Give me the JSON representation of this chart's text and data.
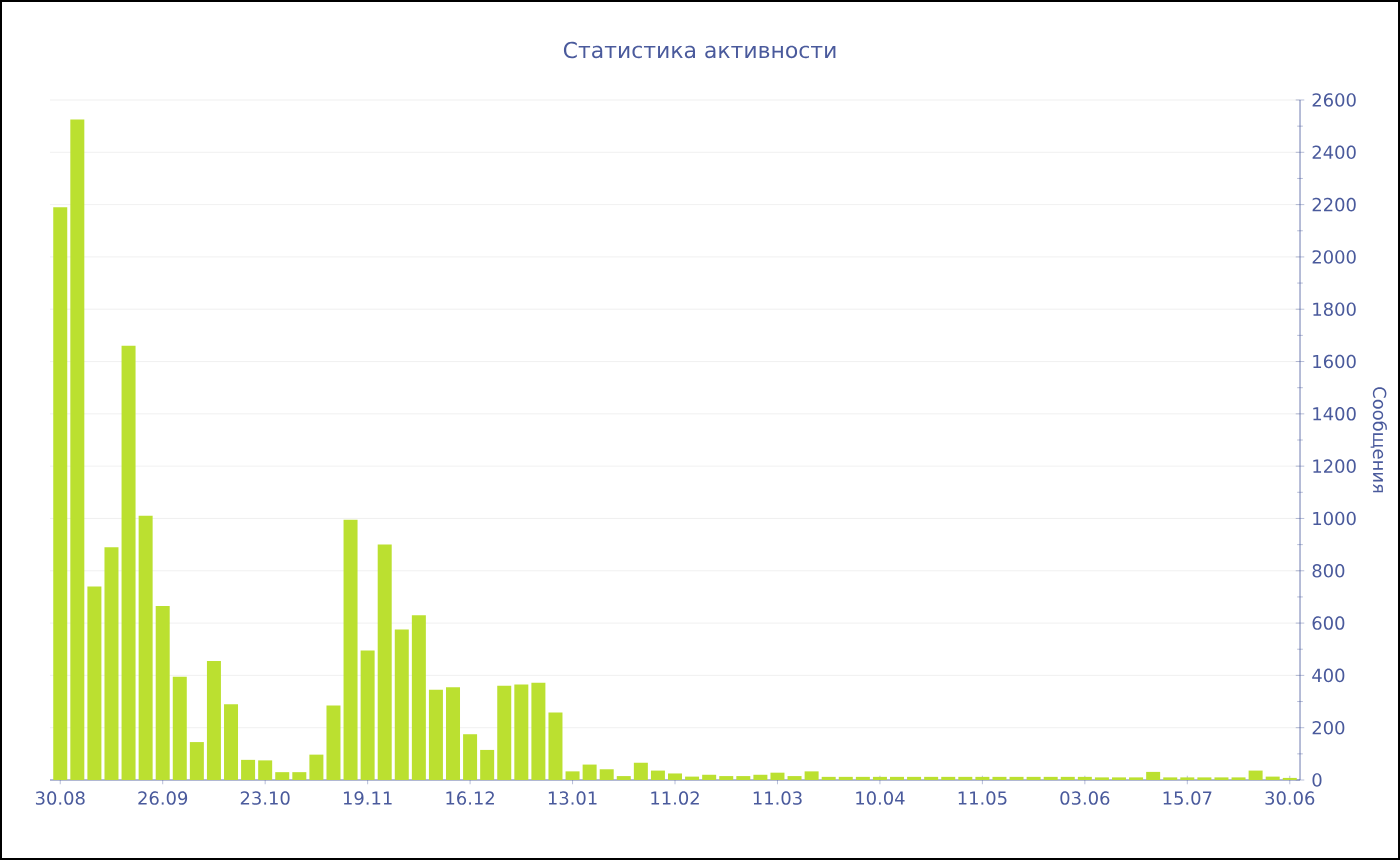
{
  "chart_data": {
    "type": "bar",
    "title": "Статистика активности",
    "ylabel": "Сообщения",
    "color": "#bbe030",
    "grid": "y",
    "categories": [
      "30.08",
      null,
      null,
      null,
      null,
      null,
      "26.09",
      null,
      null,
      null,
      null,
      null,
      "23.10",
      null,
      null,
      null,
      null,
      null,
      "19.11",
      null,
      null,
      null,
      null,
      null,
      "16.12",
      null,
      null,
      null,
      null,
      null,
      "13.01",
      null,
      null,
      null,
      null,
      null,
      "11.02",
      null,
      null,
      null,
      null,
      null,
      "11.03",
      null,
      null,
      null,
      null,
      null,
      "10.04",
      null,
      null,
      null,
      null,
      null,
      "11.05",
      null,
      null,
      null,
      null,
      null,
      "03.06",
      null,
      null,
      null,
      null,
      null,
      "15.07",
      null,
      null,
      null,
      null,
      null,
      "30.06"
    ],
    "values": [
      2190,
      2525,
      740,
      890,
      1660,
      1010,
      665,
      395,
      145,
      455,
      290,
      77,
      75,
      30,
      30,
      97,
      285,
      995,
      495,
      900,
      575,
      630,
      345,
      355,
      175,
      115,
      360,
      365,
      372,
      258,
      33,
      59,
      41,
      15,
      66,
      36,
      25,
      13,
      20,
      15,
      15,
      20,
      28,
      15,
      33,
      12,
      12,
      12,
      12,
      12,
      12,
      12,
      12,
      12,
      12,
      12,
      12,
      12,
      12,
      12,
      12,
      10,
      10,
      10,
      31,
      10,
      10,
      10,
      10,
      10,
      36,
      13,
      8
    ],
    "ylim": [
      0,
      2600
    ],
    "yticks": [
      0,
      200,
      400,
      600,
      800,
      1000,
      1200,
      1400,
      1600,
      1800,
      2000,
      2200,
      2400,
      2600
    ]
  }
}
